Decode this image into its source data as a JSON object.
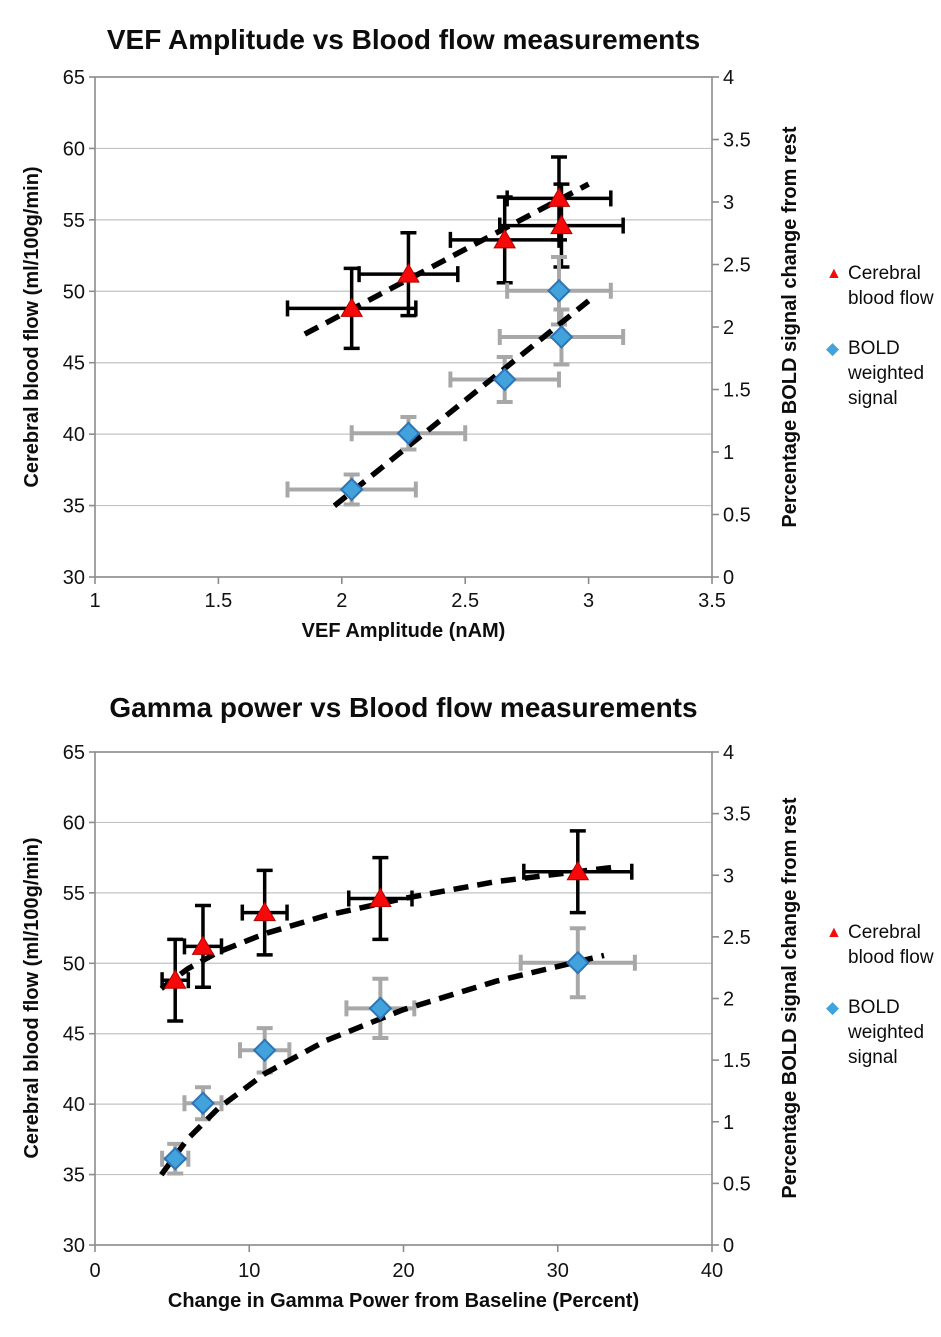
{
  "colors": {
    "cbf_fill": "#f60909",
    "cbf_edge": "#b40000",
    "bold_fill": "#42a2dc",
    "bold_edge": "#2e75b6",
    "cbf_error": "#000000",
    "bold_error": "#a8a8a8",
    "gridline": "#c3c3c3",
    "axis": "#8c8c8c",
    "trendline": "#000000",
    "background": "#ffffff"
  },
  "chart_data": [
    {
      "id": "vef-chart",
      "type": "scatter",
      "title": "VEF Amplitude vs Blood flow measurements",
      "xlabel": "VEF Amplitude (nAM)",
      "ylabel_left": "Cerebral blood flow (ml/100g/min)",
      "ylabel_right": "Percentage BOLD signal change from rest",
      "xlim": [
        1,
        3.5
      ],
      "ylim_left": [
        30,
        65
      ],
      "ylim_right": [
        0,
        4
      ],
      "x_ticks": [
        1,
        1.5,
        2,
        2.5,
        3,
        3.5
      ],
      "y_left_ticks": [
        30,
        35,
        40,
        45,
        50,
        55,
        60,
        65
      ],
      "y_right_ticks": [
        0,
        0.5,
        1,
        1.5,
        2,
        2.5,
        3,
        3.5,
        4
      ],
      "grid": "horizontal",
      "series": [
        {
          "name": "Cerebral blood flow",
          "axis": "left",
          "marker": "triangle",
          "x": [
            2.04,
            2.27,
            2.66,
            2.89,
            2.88
          ],
          "y": [
            48.8,
            51.2,
            53.6,
            54.6,
            56.5
          ],
          "xerr": [
            0.26,
            0.2,
            0.22,
            0.25,
            0.21
          ],
          "yerr": [
            2.8,
            2.9,
            3.0,
            2.9,
            2.9
          ],
          "trend": {
            "kind": "linear-dashed",
            "points": [
              [
                1.85,
                47.0
              ],
              [
                3.0,
                57.5
              ]
            ]
          }
        },
        {
          "name": "BOLD weighted signal",
          "axis": "right",
          "marker": "diamond",
          "x": [
            2.04,
            2.27,
            2.66,
            2.89,
            2.88
          ],
          "y": [
            0.7,
            1.15,
            1.58,
            1.92,
            2.29
          ],
          "xerr": [
            0.26,
            0.23,
            0.22,
            0.25,
            0.21
          ],
          "yerr": [
            0.12,
            0.13,
            0.18,
            0.22,
            0.27
          ],
          "trend": {
            "kind": "linear-dashed",
            "points": [
              [
                1.97,
                0.57
              ],
              [
                3.0,
                2.21
              ]
            ]
          }
        }
      ],
      "legend": {
        "position": "right",
        "items": [
          {
            "marker": "triangle",
            "lines": [
              "Cerebral",
              "blood flow"
            ]
          },
          {
            "marker": "diamond",
            "lines": [
              "BOLD",
              "weighted",
              "signal"
            ]
          }
        ]
      }
    },
    {
      "id": "gamma-chart",
      "type": "scatter",
      "title": "Gamma power vs Blood flow measurements",
      "xlabel": "Change in Gamma Power from Baseline (Percent)",
      "ylabel_left": "Cerebral blood flow (ml/100g/min)",
      "ylabel_right": "Percentage BOLD signal change from rest",
      "xlim": [
        0,
        40
      ],
      "ylim_left": [
        30,
        65
      ],
      "ylim_right": [
        0,
        4
      ],
      "x_ticks": [
        0,
        10,
        20,
        30,
        40
      ],
      "y_left_ticks": [
        30,
        35,
        40,
        45,
        50,
        55,
        60,
        65
      ],
      "y_right_ticks": [
        0,
        0.5,
        1,
        1.5,
        2,
        2.5,
        3,
        3.5,
        4
      ],
      "grid": "horizontal",
      "series": [
        {
          "name": "Cerebral blood flow",
          "axis": "left",
          "marker": "triangle",
          "x": [
            5.2,
            7.0,
            11.0,
            18.5,
            31.3
          ],
          "y": [
            48.8,
            51.2,
            53.6,
            54.6,
            56.5
          ],
          "xerr": [
            0.85,
            1.2,
            1.45,
            2.05,
            3.5
          ],
          "yerr": [
            2.9,
            2.9,
            3.0,
            2.9,
            2.9
          ],
          "trend": {
            "kind": "log-dashed",
            "points": [
              [
                4.3,
                48.2
              ],
              [
                6,
                49.6
              ],
              [
                8,
                50.8
              ],
              [
                11,
                52.1
              ],
              [
                15,
                53.4
              ],
              [
                20,
                54.6
              ],
              [
                26,
                55.8
              ],
              [
                33.5,
                56.8
              ]
            ]
          }
        },
        {
          "name": "BOLD weighted signal",
          "axis": "right",
          "marker": "diamond",
          "x": [
            5.2,
            7.0,
            11.0,
            18.5,
            31.3
          ],
          "y": [
            0.7,
            1.15,
            1.58,
            1.92,
            2.29
          ],
          "xerr": [
            0.85,
            1.2,
            1.6,
            2.2,
            3.7
          ],
          "yerr": [
            0.12,
            0.13,
            0.18,
            0.24,
            0.28
          ],
          "trend": {
            "kind": "log-dashed",
            "points": [
              [
                4.3,
                0.57
              ],
              [
                6,
                0.86
              ],
              [
                8,
                1.11
              ],
              [
                11,
                1.39
              ],
              [
                15,
                1.66
              ],
              [
                20,
                1.91
              ],
              [
                26,
                2.14
              ],
              [
                33,
                2.35
              ]
            ]
          }
        }
      ],
      "legend": {
        "position": "right",
        "items": [
          {
            "marker": "triangle",
            "lines": [
              "Cerebral",
              "blood flow"
            ]
          },
          {
            "marker": "diamond",
            "lines": [
              "BOLD",
              "weighted",
              "signal"
            ]
          }
        ]
      }
    }
  ]
}
